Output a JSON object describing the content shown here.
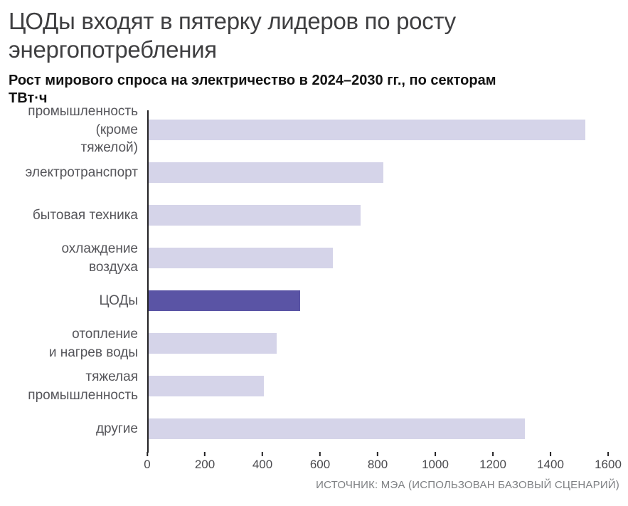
{
  "header": {
    "title": "ЦОДы входят в пятерку лидеров по росту энергопотребления",
    "subtitle": "Рост мирового спроса на электричество в 2024–2030 гг., по секторам",
    "unit": "ТВт·ч"
  },
  "footer": {
    "source": "ИСТОЧНИК: МЭА (ИСПОЛЬЗОВАН БАЗОВЫЙ СЦЕНАРИЙ)"
  },
  "chart_data": {
    "type": "bar",
    "orientation": "horizontal",
    "title": "Рост мирового спроса на электричество в 2024–2030 гг., по секторам",
    "xlabel": "",
    "ylabel": "ТВт·ч",
    "categories": [
      "промышленность\n(кроме\nтяжелой)",
      "электротранспорт",
      "бытовая техника",
      "охлаждение\nвоздуха",
      "ЦОДы",
      "отопление\nи нагрев воды",
      "тяжелая\nпромышленность",
      "другие"
    ],
    "values": [
      1520,
      820,
      740,
      645,
      530,
      450,
      405,
      1310
    ],
    "highlight_index": 4,
    "highlight_category": "ЦОДы",
    "xlim": [
      0,
      1600
    ],
    "x_ticks": [
      0,
      200,
      400,
      600,
      800,
      1000,
      1200,
      1400,
      1600
    ],
    "grid": false,
    "legend": false,
    "colors": {
      "bar": "#d5d4e9",
      "highlight": "#5a54a5",
      "axis": "#232224"
    }
  }
}
